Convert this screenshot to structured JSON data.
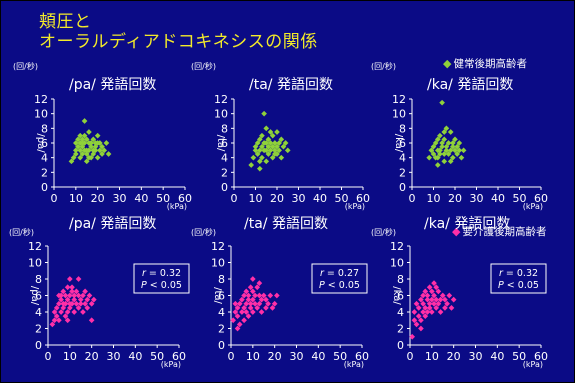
{
  "slide": {
    "title_line1": "頬圧と",
    "title_line2": "オーラルディアドコキネシスの関係",
    "legend_healthy": "健常後期高齢者",
    "legend_care": "要介護後期高齢者",
    "colors": {
      "background": "#0b0b86",
      "title": "#f3ea2a",
      "healthy": "#8fd13a",
      "care": "#ff2fa8",
      "text": "#ffffff"
    }
  },
  "chart_data": [
    {
      "type": "scatter",
      "title": "/pa/ 発語回数",
      "series_group": "健常後期高齢者",
      "ylabel": "/pa/",
      "y_unit": "(回/秒)",
      "x_unit": "(kPa)",
      "xlim": [
        0,
        60
      ],
      "ylim": [
        0,
        12
      ],
      "xticks": [
        0,
        10,
        20,
        30,
        40,
        50,
        60
      ],
      "yticks": [
        0,
        2,
        4,
        6,
        8,
        10,
        12
      ],
      "points": [
        [
          8,
          3.5
        ],
        [
          9,
          4
        ],
        [
          10,
          4.5
        ],
        [
          10,
          5
        ],
        [
          10,
          6
        ],
        [
          11,
          5.5
        ],
        [
          11,
          6.5
        ],
        [
          12,
          4
        ],
        [
          12,
          5
        ],
        [
          12,
          6
        ],
        [
          12,
          7
        ],
        [
          13,
          4.5
        ],
        [
          13,
          5.5
        ],
        [
          13,
          6
        ],
        [
          14,
          5
        ],
        [
          14,
          6
        ],
        [
          14,
          7
        ],
        [
          14,
          9
        ],
        [
          15,
          3.5
        ],
        [
          15,
          4.5
        ],
        [
          15,
          5
        ],
        [
          15,
          6.5
        ],
        [
          16,
          5
        ],
        [
          16,
          6
        ],
        [
          16,
          7.5
        ],
        [
          17,
          4
        ],
        [
          17,
          5.5
        ],
        [
          17,
          6
        ],
        [
          18,
          4.5
        ],
        [
          18,
          5
        ],
        [
          18,
          6.5
        ],
        [
          19,
          5
        ],
        [
          19,
          5.5
        ],
        [
          20,
          4
        ],
        [
          20,
          6
        ],
        [
          20,
          7
        ],
        [
          21,
          5
        ],
        [
          21,
          6
        ],
        [
          22,
          4.5
        ],
        [
          22,
          5.5
        ],
        [
          23,
          5
        ],
        [
          24,
          6
        ],
        [
          25,
          4.5
        ],
        [
          13,
          6.5
        ],
        [
          16,
          4
        ],
        [
          19,
          6
        ]
      ],
      "stats": null
    },
    {
      "type": "scatter",
      "title": "/ta/ 発語回数",
      "series_group": "健常後期高齢者",
      "ylabel": "/ta/",
      "y_unit": "(回/秒)",
      "x_unit": "(kPa)",
      "xlim": [
        0,
        60
      ],
      "ylim": [
        0,
        12
      ],
      "xticks": [
        0,
        10,
        20,
        30,
        40,
        50,
        60
      ],
      "yticks": [
        0,
        2,
        4,
        6,
        8,
        10,
        12
      ],
      "points": [
        [
          8,
          3
        ],
        [
          9,
          4
        ],
        [
          10,
          5
        ],
        [
          10,
          5.5
        ],
        [
          11,
          4.5
        ],
        [
          11,
          6
        ],
        [
          12,
          2.5
        ],
        [
          12,
          5
        ],
        [
          12,
          6.5
        ],
        [
          13,
          4
        ],
        [
          13,
          5.5
        ],
        [
          13,
          7
        ],
        [
          14,
          5
        ],
        [
          14,
          6
        ],
        [
          14,
          10
        ],
        [
          15,
          3.5
        ],
        [
          15,
          5
        ],
        [
          15,
          6
        ],
        [
          15,
          8
        ],
        [
          16,
          4.5
        ],
        [
          16,
          5.5
        ],
        [
          16,
          6.5
        ],
        [
          17,
          5
        ],
        [
          17,
          6
        ],
        [
          18,
          4
        ],
        [
          18,
          5.5
        ],
        [
          18,
          7
        ],
        [
          19,
          5
        ],
        [
          19,
          6
        ],
        [
          20,
          4.5
        ],
        [
          20,
          5.5
        ],
        [
          20,
          7.5
        ],
        [
          21,
          5
        ],
        [
          21,
          6
        ],
        [
          22,
          4
        ],
        [
          22,
          6.5
        ],
        [
          23,
          5.5
        ],
        [
          24,
          6
        ],
        [
          25,
          5
        ],
        [
          12,
          3.5
        ],
        [
          17,
          7.5
        ],
        [
          19,
          4.5
        ]
      ],
      "stats": null
    },
    {
      "type": "scatter",
      "title": "/ka/ 発語回数",
      "series_group": "健常後期高齢者",
      "ylabel": "/ka/",
      "y_unit": "(回/秒)",
      "x_unit": "(kPa)",
      "xlim": [
        0,
        60
      ],
      "ylim": [
        0,
        12
      ],
      "xticks": [
        0,
        10,
        20,
        30,
        40,
        50,
        60
      ],
      "yticks": [
        0,
        2,
        4,
        6,
        8,
        10,
        12
      ],
      "points": [
        [
          8,
          4
        ],
        [
          9,
          5
        ],
        [
          10,
          4.5
        ],
        [
          10,
          5.5
        ],
        [
          11,
          4
        ],
        [
          11,
          6
        ],
        [
          12,
          3
        ],
        [
          12,
          5
        ],
        [
          12,
          6.5
        ],
        [
          13,
          4.5
        ],
        [
          13,
          5
        ],
        [
          13,
          7
        ],
        [
          14,
          5.5
        ],
        [
          14,
          6
        ],
        [
          14,
          11.5
        ],
        [
          15,
          3.5
        ],
        [
          15,
          4.5
        ],
        [
          15,
          6.5
        ],
        [
          16,
          5
        ],
        [
          16,
          5.5
        ],
        [
          16,
          8
        ],
        [
          17,
          4.5
        ],
        [
          17,
          6
        ],
        [
          18,
          5
        ],
        [
          18,
          7.5
        ],
        [
          19,
          4
        ],
        [
          19,
          5.5
        ],
        [
          19,
          6
        ],
        [
          20,
          5
        ],
        [
          20,
          6.5
        ],
        [
          21,
          4.5
        ],
        [
          21,
          5.5
        ],
        [
          22,
          5
        ],
        [
          22,
          6
        ],
        [
          23,
          4
        ],
        [
          24,
          5
        ],
        [
          12,
          4
        ],
        [
          18,
          3.5
        ],
        [
          15,
          7.5
        ]
      ],
      "stats": null
    },
    {
      "type": "scatter",
      "title": "/pa/ 発語回数",
      "series_group": "要介護後期高齢者",
      "ylabel": "/pa/",
      "y_unit": "(回/秒)",
      "x_unit": "(kPa)",
      "xlim": [
        0,
        60
      ],
      "ylim": [
        0,
        12
      ],
      "xticks": [
        0,
        10,
        20,
        30,
        40,
        50,
        60
      ],
      "yticks": [
        0,
        2,
        4,
        6,
        8,
        10,
        12
      ],
      "points": [
        [
          2,
          2.5
        ],
        [
          3,
          3
        ],
        [
          3,
          4
        ],
        [
          4,
          3.5
        ],
        [
          4,
          4.5
        ],
        [
          5,
          3
        ],
        [
          5,
          5
        ],
        [
          6,
          4
        ],
        [
          6,
          5.5
        ],
        [
          6,
          6
        ],
        [
          7,
          4.5
        ],
        [
          7,
          5
        ],
        [
          7,
          6.5
        ],
        [
          8,
          3.5
        ],
        [
          8,
          5
        ],
        [
          8,
          6
        ],
        [
          9,
          4
        ],
        [
          9,
          5.5
        ],
        [
          9,
          7
        ],
        [
          10,
          4.5
        ],
        [
          10,
          5
        ],
        [
          10,
          6
        ],
        [
          10,
          8
        ],
        [
          11,
          5
        ],
        [
          11,
          6.5
        ],
        [
          12,
          4
        ],
        [
          12,
          5.5
        ],
        [
          12,
          6
        ],
        [
          13,
          5
        ],
        [
          13,
          6.5
        ],
        [
          14,
          4.5
        ],
        [
          14,
          6
        ],
        [
          15,
          5
        ],
        [
          15,
          5.5
        ],
        [
          16,
          4
        ],
        [
          16,
          6
        ],
        [
          17,
          5
        ],
        [
          17,
          6.5
        ],
        [
          18,
          4.5
        ],
        [
          18,
          5.5
        ],
        [
          19,
          6
        ],
        [
          20,
          3
        ],
        [
          20,
          5
        ],
        [
          21,
          5.5
        ],
        [
          5,
          6
        ],
        [
          11,
          7
        ],
        [
          14,
          8
        ],
        [
          9,
          3
        ]
      ],
      "stats": {
        "r_label": "r",
        "r_value": "= 0.32",
        "p_label": "P",
        "p_value": "< 0.05"
      }
    },
    {
      "type": "scatter",
      "title": "/ta/ 発語回数",
      "series_group": "要介護後期高齢者",
      "ylabel": "/ta/",
      "y_unit": "(回/秒)",
      "x_unit": "(kPa)",
      "xlim": [
        0,
        60
      ],
      "ylim": [
        0,
        12
      ],
      "xticks": [
        0,
        10,
        20,
        30,
        40,
        50,
        60
      ],
      "yticks": [
        0,
        2,
        4,
        6,
        8,
        10,
        12
      ],
      "points": [
        [
          1,
          3
        ],
        [
          2,
          4
        ],
        [
          2,
          5
        ],
        [
          3,
          3.5
        ],
        [
          3,
          4.5
        ],
        [
          4,
          2.5
        ],
        [
          4,
          5
        ],
        [
          5,
          4
        ],
        [
          5,
          5.5
        ],
        [
          6,
          3
        ],
        [
          6,
          4.5
        ],
        [
          6,
          6
        ],
        [
          7,
          4
        ],
        [
          7,
          5
        ],
        [
          7,
          6.5
        ],
        [
          8,
          3.5
        ],
        [
          8,
          5.5
        ],
        [
          8,
          6
        ],
        [
          9,
          4.5
        ],
        [
          9,
          5
        ],
        [
          9,
          7
        ],
        [
          10,
          4
        ],
        [
          10,
          5.5
        ],
        [
          10,
          6.5
        ],
        [
          11,
          5
        ],
        [
          11,
          6
        ],
        [
          12,
          4.5
        ],
        [
          12,
          7
        ],
        [
          13,
          5
        ],
        [
          13,
          6
        ],
        [
          14,
          4
        ],
        [
          14,
          5.5
        ],
        [
          15,
          6
        ],
        [
          16,
          4.5
        ],
        [
          16,
          5.5
        ],
        [
          17,
          5
        ],
        [
          18,
          6
        ],
        [
          19,
          4.5
        ],
        [
          20,
          5
        ],
        [
          21,
          6
        ],
        [
          3,
          2
        ],
        [
          10,
          8
        ],
        [
          13,
          7.5
        ]
      ],
      "stats": {
        "r_label": "r",
        "r_value": "= 0.27",
        "p_label": "P",
        "p_value": "< 0.05"
      }
    },
    {
      "type": "scatter",
      "title": "/ka/ 発語回数",
      "series_group": "要介護後期高齢者",
      "ylabel": "/ka/",
      "y_unit": "(回/秒)",
      "x_unit": "(kPa)",
      "xlim": [
        0,
        60
      ],
      "ylim": [
        0,
        12
      ],
      "xticks": [
        0,
        10,
        20,
        30,
        40,
        50,
        60
      ],
      "yticks": [
        0,
        2,
        4,
        6,
        8,
        10,
        12
      ],
      "points": [
        [
          1,
          1
        ],
        [
          2,
          3
        ],
        [
          2,
          4
        ],
        [
          3,
          2.5
        ],
        [
          3,
          5
        ],
        [
          4,
          3.5
        ],
        [
          4,
          4.5
        ],
        [
          5,
          3
        ],
        [
          5,
          5.5
        ],
        [
          6,
          4
        ],
        [
          6,
          5
        ],
        [
          6,
          6
        ],
        [
          7,
          3.5
        ],
        [
          7,
          4.5
        ],
        [
          7,
          6.5
        ],
        [
          8,
          4
        ],
        [
          8,
          5.5
        ],
        [
          8,
          6
        ],
        [
          9,
          4.5
        ],
        [
          9,
          5
        ],
        [
          9,
          7
        ],
        [
          10,
          4
        ],
        [
          10,
          5.5
        ],
        [
          10,
          6.5
        ],
        [
          11,
          5
        ],
        [
          11,
          6
        ],
        [
          12,
          4.5
        ],
        [
          12,
          5.5
        ],
        [
          12,
          7
        ],
        [
          13,
          5
        ],
        [
          13,
          6.5
        ],
        [
          14,
          4
        ],
        [
          14,
          5.5
        ],
        [
          15,
          6
        ],
        [
          16,
          4.5
        ],
        [
          16,
          5.5
        ],
        [
          17,
          5
        ],
        [
          18,
          6
        ],
        [
          19,
          4.5
        ],
        [
          20,
          5.5
        ],
        [
          11,
          7.5
        ],
        [
          5,
          2
        ]
      ],
      "stats": {
        "r_label": "r",
        "r_value": "= 0.32",
        "p_label": "P",
        "p_value": "< 0.05"
      }
    }
  ]
}
